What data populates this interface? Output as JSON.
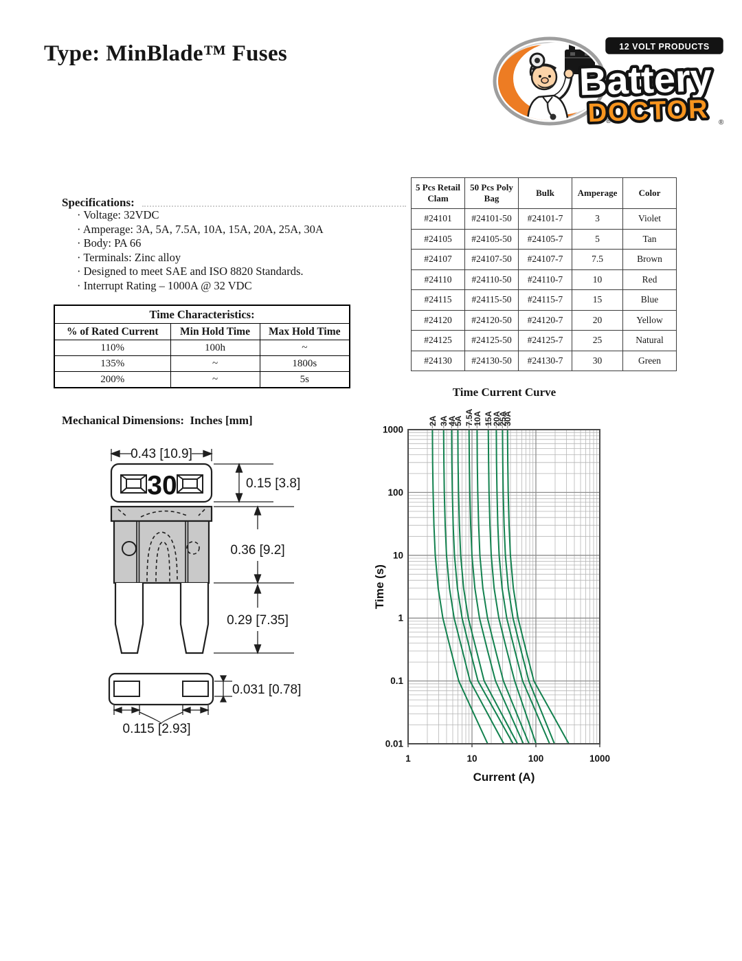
{
  "page": {
    "title": "Type: MinBlade™ Fuses"
  },
  "logo": {
    "tagline": "12 VOLT PRODUCTS",
    "brand_top": "Battery",
    "brand_bottom": "DOCTOR",
    "registered_mark": "®",
    "orange": "#F7941E"
  },
  "specifications": {
    "heading": "Specifications:",
    "items": [
      "Voltage: 32VDC",
      "Amperage: 3A, 5A, 7.5A, 10A, 15A, 20A, 25A, 30A",
      "Body: PA 66",
      "Terminals: Zinc alloy",
      "Designed to meet SAE and ISO 8820 Standards.",
      "Interrupt Rating – 1000A @ 32 VDC"
    ]
  },
  "time_characteristics": {
    "title": "Time Characteristics:",
    "columns": [
      "% of Rated Current",
      "Min Hold Time",
      "Max Hold Time"
    ],
    "rows": [
      [
        "110%",
        "100h",
        "~"
      ],
      [
        "135%",
        "~",
        "1800s"
      ],
      [
        "200%",
        "~",
        "5s"
      ]
    ]
  },
  "parts_table": {
    "columns": [
      "5 Pcs Retail Clam",
      "50 Pcs Poly Bag",
      "Bulk",
      "Amperage",
      "Color"
    ],
    "rows": [
      [
        "#24101",
        "#24101-50",
        "#24101-7",
        "3",
        "Violet"
      ],
      [
        "#24105",
        "#24105-50",
        "#24105-7",
        "5",
        "Tan"
      ],
      [
        "#24107",
        "#24107-50",
        "#24107-7",
        "7.5",
        "Brown"
      ],
      [
        "#24110",
        "#24110-50",
        "#24110-7",
        "10",
        "Red"
      ],
      [
        "#24115",
        "#24115-50",
        "#24115-7",
        "15",
        "Blue"
      ],
      [
        "#24120",
        "#24120-50",
        "#24120-7",
        "20",
        "Yellow"
      ],
      [
        "#24125",
        "#24125-50",
        "#24125-7",
        "25",
        "Natural"
      ],
      [
        "#24130",
        "#24130-50",
        "#24130-7",
        "30",
        "Green"
      ]
    ]
  },
  "mechanical": {
    "heading": "Mechanical Dimensions:  Inches [mm]",
    "fuse_amp_label": "30",
    "dim_width_top": "0.43 [10.9]",
    "dim_height_top": "0.15 [3.8]",
    "dim_body_height": "0.36 [9.2]",
    "dim_blade_length": "0.29 [7.35]",
    "dim_slot_height": "0.031 [0.78]",
    "dim_slot_width": "0.115 [2.93]"
  },
  "chart_data": {
    "type": "line",
    "title": "Time Current Curve",
    "xlabel": "Current (A)",
    "ylabel": "Time (s)",
    "xscale": "log",
    "yscale": "log",
    "xlim": [
      1,
      1000
    ],
    "ylim": [
      0.01,
      1000
    ],
    "x_ticks": [
      "1",
      "10",
      "100",
      "1000"
    ],
    "x_tick_values": [
      1,
      10,
      100,
      1000
    ],
    "y_ticks": [
      "1000",
      "100",
      "10",
      "1",
      "0.1",
      "0.01"
    ],
    "y_tick_values": [
      1000,
      100,
      10,
      1,
      0.1,
      0.01
    ],
    "grid": true,
    "legend_position": "top-labels",
    "line_color": "#12814E",
    "series": [
      {
        "name": "2A",
        "points": [
          [
            2.4,
            1000
          ],
          [
            2.42,
            300
          ],
          [
            2.46,
            100
          ],
          [
            2.54,
            30
          ],
          [
            2.66,
            10
          ],
          [
            2.96,
            3
          ],
          [
            3.5,
            1
          ],
          [
            4.7,
            0.3
          ],
          [
            6.2,
            0.1
          ],
          [
            10.7,
            0.03
          ],
          [
            17.6,
            0.01
          ]
        ]
      },
      {
        "name": "3A",
        "points": [
          [
            3.6,
            1000
          ],
          [
            3.63,
            300
          ],
          [
            3.69,
            100
          ],
          [
            3.81,
            30
          ],
          [
            3.99,
            10
          ],
          [
            4.44,
            3
          ],
          [
            5.25,
            1
          ],
          [
            7.1,
            0.3
          ],
          [
            9.3,
            0.1
          ],
          [
            17.6,
            0.03
          ],
          [
            31.5,
            0.01
          ]
        ]
      },
      {
        "name": "4A",
        "points": [
          [
            4.8,
            1000
          ],
          [
            4.84,
            300
          ],
          [
            4.92,
            100
          ],
          [
            5.08,
            30
          ],
          [
            5.32,
            10
          ],
          [
            5.92,
            3
          ],
          [
            7.0,
            1
          ],
          [
            9.4,
            0.3
          ],
          [
            12.4,
            0.1
          ],
          [
            24.1,
            0.03
          ],
          [
            44.0,
            0.01
          ]
        ]
      },
      {
        "name": "5A",
        "points": [
          [
            6.0,
            1000
          ],
          [
            6.05,
            300
          ],
          [
            6.15,
            100
          ],
          [
            6.35,
            30
          ],
          [
            6.65,
            10
          ],
          [
            7.4,
            3
          ],
          [
            8.75,
            1
          ],
          [
            11.8,
            0.3
          ],
          [
            15.5,
            0.1
          ],
          [
            29.1,
            0.03
          ],
          [
            51.5,
            0.01
          ]
        ]
      },
      {
        "name": "7.5A",
        "points": [
          [
            9.0,
            1000
          ],
          [
            9.08,
            300
          ],
          [
            9.23,
            100
          ],
          [
            9.53,
            30
          ],
          [
            9.98,
            10
          ],
          [
            11.1,
            3
          ],
          [
            13.1,
            1
          ],
          [
            17.6,
            0.3
          ],
          [
            23.3,
            0.1
          ],
          [
            39.4,
            0.03
          ],
          [
            63.8,
            0.01
          ]
        ]
      },
      {
        "name": "10A",
        "points": [
          [
            12.0,
            1000
          ],
          [
            12.1,
            300
          ],
          [
            12.3,
            100
          ],
          [
            12.7,
            30
          ],
          [
            13.3,
            10
          ],
          [
            14.8,
            3
          ],
          [
            17.5,
            1
          ],
          [
            23.5,
            0.3
          ],
          [
            31.0,
            0.1
          ],
          [
            50.3,
            0.03
          ],
          [
            78.0,
            0.01
          ]
        ]
      },
      {
        "name": "15A",
        "points": [
          [
            18.0,
            1000
          ],
          [
            18.2,
            300
          ],
          [
            18.5,
            100
          ],
          [
            19.1,
            30
          ],
          [
            20.0,
            10
          ],
          [
            22.2,
            3
          ],
          [
            26.3,
            1
          ],
          [
            35.3,
            0.3
          ],
          [
            46.5,
            0.1
          ],
          [
            69.6,
            0.03
          ],
          [
            100.5,
            0.01
          ]
        ]
      },
      {
        "name": "20A",
        "points": [
          [
            24.0,
            1000
          ],
          [
            24.2,
            300
          ],
          [
            24.6,
            100
          ],
          [
            25.4,
            30
          ],
          [
            26.6,
            10
          ],
          [
            29.6,
            3
          ],
          [
            35.0,
            1
          ],
          [
            47.0,
            0.3
          ],
          [
            62.0,
            0.1
          ],
          [
            103.0,
            0.03
          ],
          [
            164.0,
            0.01
          ]
        ]
      },
      {
        "name": "25A",
        "points": [
          [
            30.0,
            1000
          ],
          [
            30.3,
            300
          ],
          [
            30.8,
            100
          ],
          [
            31.8,
            30
          ],
          [
            33.3,
            10
          ],
          [
            37.0,
            3
          ],
          [
            43.8,
            1
          ],
          [
            58.8,
            0.3
          ],
          [
            77.5,
            0.1
          ],
          [
            125.8,
            0.03
          ],
          [
            195.0,
            0.01
          ]
        ]
      },
      {
        "name": "30A",
        "points": [
          [
            36.0,
            1000
          ],
          [
            36.3,
            300
          ],
          [
            36.9,
            100
          ],
          [
            38.1,
            30
          ],
          [
            39.9,
            10
          ],
          [
            44.4,
            3
          ],
          [
            52.5,
            1
          ],
          [
            70.5,
            0.3
          ],
          [
            93.0,
            0.1
          ],
          [
            179.7,
            0.03
          ],
          [
            327.0,
            0.01
          ]
        ]
      }
    ]
  }
}
